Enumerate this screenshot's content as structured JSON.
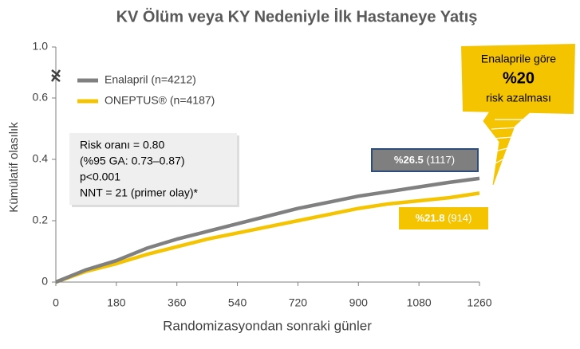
{
  "chart_data": {
    "type": "line",
    "title": "KV Ölüm veya KY Nedeniyle İlk Hastaneye Yatış",
    "xlabel": "Randomizasyondan sonraki günler",
    "ylabel": "Kümülatif olasılık",
    "xlim": [
      0,
      1260
    ],
    "xticks": [
      0,
      180,
      360,
      540,
      720,
      900,
      1080,
      1260
    ],
    "ylim": [
      0,
      1
    ],
    "yticks": [
      0,
      0.2,
      0.4,
      0.6,
      {
        "value": 1,
        "label": "1.0"
      }
    ],
    "axis_break": true,
    "x": [
      0,
      90,
      180,
      270,
      360,
      450,
      540,
      630,
      720,
      810,
      900,
      990,
      1080,
      1170,
      1260
    ],
    "series": [
      {
        "name": "Enalapril  (n=4212)",
        "color": "#808080",
        "values": [
          0,
          0.04,
          0.07,
          0.11,
          0.14,
          0.165,
          0.19,
          0.215,
          0.24,
          0.26,
          0.28,
          0.295,
          0.31,
          0.325,
          0.338
        ]
      },
      {
        "name": "ONEPTUS®  (n=4187)",
        "color": "#f5c400",
        "values": [
          0,
          0.035,
          0.06,
          0.09,
          0.115,
          0.14,
          0.16,
          0.18,
          0.2,
          0.22,
          0.24,
          0.255,
          0.265,
          0.275,
          0.29
        ]
      }
    ],
    "annotations": {
      "risk_box": [
        "Risk oranı = 0.80",
        "(%95 GA: 0.73–0.87)",
        "p<0.001",
        "NNT  = 21 (primer olay)*"
      ],
      "enalapril_label": {
        "value": "%26.5",
        "count": "(1117)"
      },
      "oneptus_label": {
        "value": "%21.8",
        "count": "(914)"
      },
      "callout": [
        "Enalaprile göre",
        "%20",
        "risk azalması"
      ]
    }
  }
}
